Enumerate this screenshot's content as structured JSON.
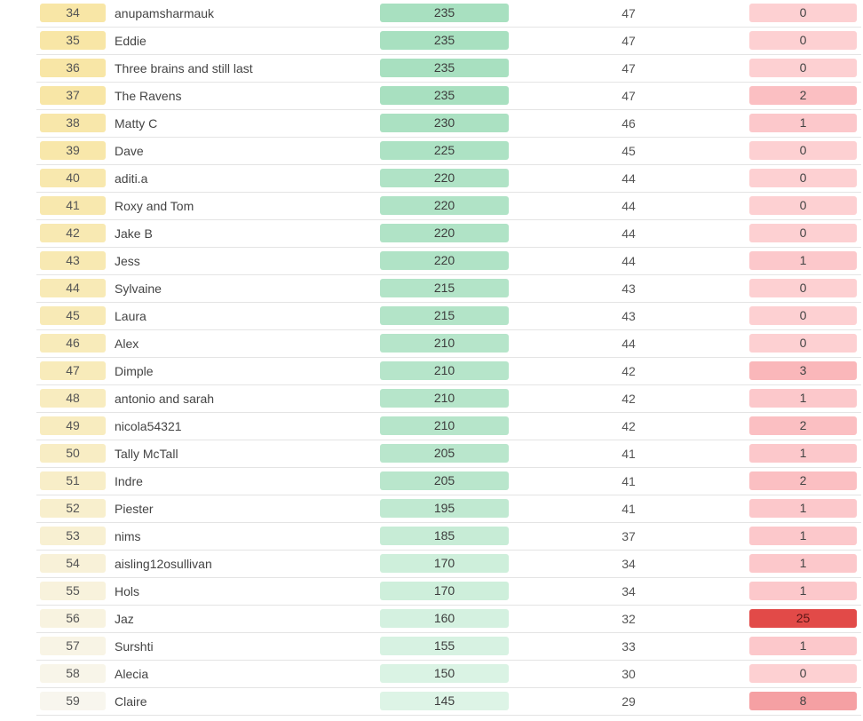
{
  "leaderboard": {
    "rows": [
      {
        "rank": "34",
        "name": "anupamsharmauk",
        "score": "235",
        "correct": "47",
        "wrong": "0",
        "rank_color": "#f8e6a6",
        "score_color": "#a8e0c0",
        "wrong_color": "#fdd0d2"
      },
      {
        "rank": "35",
        "name": "Eddie",
        "score": "235",
        "correct": "47",
        "wrong": "0",
        "rank_color": "#f8e6a6",
        "score_color": "#a8e0c0",
        "wrong_color": "#fdd0d2"
      },
      {
        "rank": "36",
        "name": "Three brains and still last",
        "score": "235",
        "correct": "47",
        "wrong": "0",
        "rank_color": "#f8e6a6",
        "score_color": "#a8e0c0",
        "wrong_color": "#fdd0d2"
      },
      {
        "rank": "37",
        "name": "The Ravens",
        "score": "235",
        "correct": "47",
        "wrong": "2",
        "rank_color": "#f8e6a6",
        "score_color": "#a8e0c0",
        "wrong_color": "#fbbfc2"
      },
      {
        "rank": "38",
        "name": "Matty C",
        "score": "230",
        "correct": "46",
        "wrong": "1",
        "rank_color": "#f8e7aa",
        "score_color": "#abe1c2",
        "wrong_color": "#fcc8cb"
      },
      {
        "rank": "39",
        "name": "Dave",
        "score": "225",
        "correct": "45",
        "wrong": "0",
        "rank_color": "#f8e7aa",
        "score_color": "#ade2c4",
        "wrong_color": "#fdd0d2"
      },
      {
        "rank": "40",
        "name": "aditi.a",
        "score": "220",
        "correct": "44",
        "wrong": "0",
        "rank_color": "#f8e8ae",
        "score_color": "#b0e3c6",
        "wrong_color": "#fdd0d2"
      },
      {
        "rank": "41",
        "name": "Roxy and Tom",
        "score": "220",
        "correct": "44",
        "wrong": "0",
        "rank_color": "#f8e8ae",
        "score_color": "#b0e3c6",
        "wrong_color": "#fdd0d2"
      },
      {
        "rank": "42",
        "name": "Jake B",
        "score": "220",
        "correct": "44",
        "wrong": "0",
        "rank_color": "#f8e9b2",
        "score_color": "#b0e3c6",
        "wrong_color": "#fdd0d2"
      },
      {
        "rank": "43",
        "name": "Jess",
        "score": "220",
        "correct": "44",
        "wrong": "1",
        "rank_color": "#f8e9b2",
        "score_color": "#b0e3c6",
        "wrong_color": "#fcc8cb"
      },
      {
        "rank": "44",
        "name": "Sylvaine",
        "score": "215",
        "correct": "43",
        "wrong": "0",
        "rank_color": "#f8eab6",
        "score_color": "#b3e4c8",
        "wrong_color": "#fdd0d2"
      },
      {
        "rank": "45",
        "name": "Laura",
        "score": "215",
        "correct": "43",
        "wrong": "0",
        "rank_color": "#f8eab6",
        "score_color": "#b3e4c8",
        "wrong_color": "#fdd0d2"
      },
      {
        "rank": "46",
        "name": "Alex",
        "score": "210",
        "correct": "44",
        "wrong": "0",
        "rank_color": "#f8ebba",
        "score_color": "#b6e5ca",
        "wrong_color": "#fdd0d2"
      },
      {
        "rank": "47",
        "name": "Dimple",
        "score": "210",
        "correct": "42",
        "wrong": "3",
        "rank_color": "#f8ebba",
        "score_color": "#b6e5ca",
        "wrong_color": "#fab7ba"
      },
      {
        "rank": "48",
        "name": "antonio and sarah",
        "score": "210",
        "correct": "42",
        "wrong": "1",
        "rank_color": "#f8ecbf",
        "score_color": "#b6e5ca",
        "wrong_color": "#fcc8cb"
      },
      {
        "rank": "49",
        "name": "nicola54321",
        "score": "210",
        "correct": "42",
        "wrong": "2",
        "rank_color": "#f8ecbf",
        "score_color": "#b6e5ca",
        "wrong_color": "#fbbfc2"
      },
      {
        "rank": "50",
        "name": "Tally McTall",
        "score": "205",
        "correct": "41",
        "wrong": "1",
        "rank_color": "#f8edc4",
        "score_color": "#b9e6cc",
        "wrong_color": "#fcc8cb"
      },
      {
        "rank": "51",
        "name": "Indre",
        "score": "205",
        "correct": "41",
        "wrong": "2",
        "rank_color": "#f8eec8",
        "score_color": "#b9e6cc",
        "wrong_color": "#fbbfc2"
      },
      {
        "rank": "52",
        "name": "Piester",
        "score": "195",
        "correct": "41",
        "wrong": "1",
        "rank_color": "#f8efcd",
        "score_color": "#c0e9d1",
        "wrong_color": "#fcc8cb"
      },
      {
        "rank": "53",
        "name": "nims",
        "score": "185",
        "correct": "37",
        "wrong": "1",
        "rank_color": "#f8f0d2",
        "score_color": "#c7ecd6",
        "wrong_color": "#fcc8cb"
      },
      {
        "rank": "54",
        "name": "aisling12osullivan",
        "score": "170",
        "correct": "34",
        "wrong": "1",
        "rank_color": "#f8f1d8",
        "score_color": "#ceefdb",
        "wrong_color": "#fcc8cb"
      },
      {
        "rank": "55",
        "name": "Hols",
        "score": "170",
        "correct": "34",
        "wrong": "1",
        "rank_color": "#f8f2dc",
        "score_color": "#ceefdb",
        "wrong_color": "#fcc8cb"
      },
      {
        "rank": "56",
        "name": "Jaz",
        "score": "160",
        "correct": "32",
        "wrong": "25",
        "rank_color": "#f8f3e0",
        "score_color": "#d4f1e0",
        "wrong_color": "#e24a48"
      },
      {
        "rank": "57",
        "name": "Surshti",
        "score": "155",
        "correct": "33",
        "wrong": "1",
        "rank_color": "#f8f4e5",
        "score_color": "#d7f2e2",
        "wrong_color": "#fcc8cb"
      },
      {
        "rank": "58",
        "name": "Alecia",
        "score": "150",
        "correct": "30",
        "wrong": "0",
        "rank_color": "#f8f5e9",
        "score_color": "#daf3e4",
        "wrong_color": "#fdd0d2"
      },
      {
        "rank": "59",
        "name": "Claire",
        "score": "145",
        "correct": "29",
        "wrong": "8",
        "rank_color": "#f8f6ee",
        "score_color": "#ddf4e6",
        "wrong_color": "#f5a0a3"
      }
    ]
  }
}
